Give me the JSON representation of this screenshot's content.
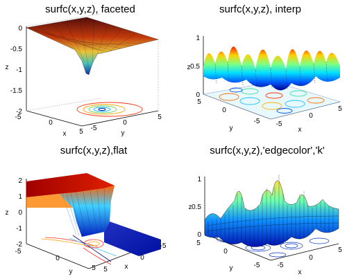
{
  "chart_data": [
    {
      "type": "surface",
      "title": "surfc(x,y,z), faceted",
      "xlabel": "x",
      "ylabel": "y",
      "zlabel": "z",
      "xticks": [
        "-5",
        "0",
        "5"
      ],
      "yticks": [
        "-5",
        "0",
        "5"
      ],
      "zticks": [
        "0",
        "-0.5",
        "-1",
        "-1.5",
        "-2"
      ],
      "xlim": [
        -5,
        5
      ],
      "ylim": [
        -5,
        5
      ],
      "zlim": [
        -2,
        0
      ],
      "shading": "faceted",
      "colormap": "jet",
      "contour_below": true
    },
    {
      "type": "surface",
      "title": "surfc(x,y,z), interp",
      "xlabel": "x",
      "ylabel": "y",
      "zlabel": "z",
      "xticks": [
        "-5",
        "0",
        "5"
      ],
      "yticks": [
        "-5",
        "0",
        "5"
      ],
      "zticks": [
        "1",
        "0.5",
        "0"
      ],
      "xlim": [
        -5,
        5
      ],
      "ylim": [
        -5,
        5
      ],
      "zlim": [
        0,
        1
      ],
      "shading": "interp",
      "colormap": "jet",
      "contour_below": true
    },
    {
      "type": "surface",
      "title": "surfc(x,y,z),flat",
      "xlabel": "x",
      "ylabel": "y",
      "zlabel": "z",
      "xticks": [
        "-5",
        "0",
        "5"
      ],
      "yticks": [
        "-5",
        "0",
        "5"
      ],
      "zticks": [
        "2",
        "1",
        "0",
        "-1",
        "-2"
      ],
      "xlim": [
        -5,
        5
      ],
      "ylim": [
        -5,
        5
      ],
      "zlim": [
        -2,
        2
      ],
      "shading": "flat",
      "colormap": "jet",
      "contour_below": true
    },
    {
      "type": "surface",
      "title": "surfc(x,y,z),'edgecolor','k'",
      "xlabel": "x",
      "ylabel": "y",
      "zlabel": "z",
      "xticks": [
        "-5",
        "0",
        "5"
      ],
      "yticks": [
        "-5",
        "0",
        "5"
      ],
      "zticks": [
        "1",
        "0.5",
        "0"
      ],
      "xlim": [
        -5,
        5
      ],
      "ylim": [
        -5,
        5
      ],
      "zlim": [
        0,
        1
      ],
      "shading": "faceted",
      "edgecolor": "k",
      "colormap": "jet",
      "contour_below": true
    }
  ]
}
